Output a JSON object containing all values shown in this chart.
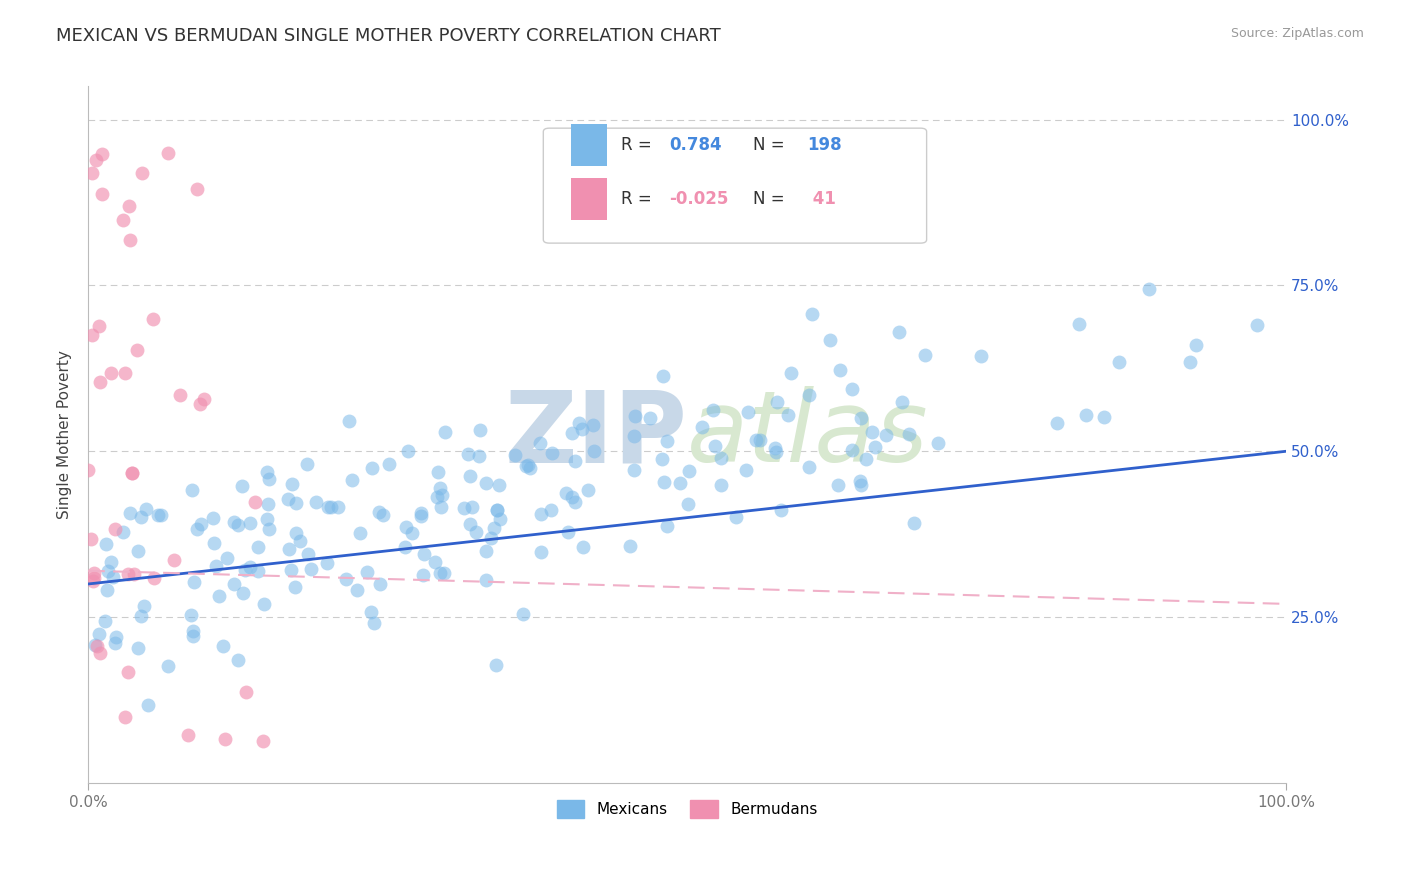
{
  "title": "MEXICAN VS BERMUDAN SINGLE MOTHER POVERTY CORRELATION CHART",
  "source_text": "Source: ZipAtlas.com",
  "ylabel": "Single Mother Poverty",
  "xlim": [
    0.0,
    1.0
  ],
  "ylim": [
    0.0,
    1.05
  ],
  "y_tick_positions": [
    0.25,
    0.5,
    0.75,
    1.0
  ],
  "legend_labels": [
    "Mexicans",
    "Bermudans"
  ],
  "mexican_color": "#7ab8e8",
  "bermudan_color": "#f090b0",
  "mexican_line_color": "#3060cc",
  "bermudan_line_color": "#f0b0c8",
  "R_mexican": 0.784,
  "N_mexican": 198,
  "R_bermudan": -0.025,
  "N_bermudan": 41,
  "background_color": "#ffffff",
  "grid_color": "#cccccc",
  "watermark_color": "#dde8f0",
  "title_fontsize": 13,
  "axis_label_fontsize": 11,
  "tick_fontsize": 11,
  "legend_r_color": "#4488dd",
  "legend_n_color": "#4488dd",
  "bermudan_r_color": "#f090b0",
  "bermudan_n_color": "#f090b0"
}
